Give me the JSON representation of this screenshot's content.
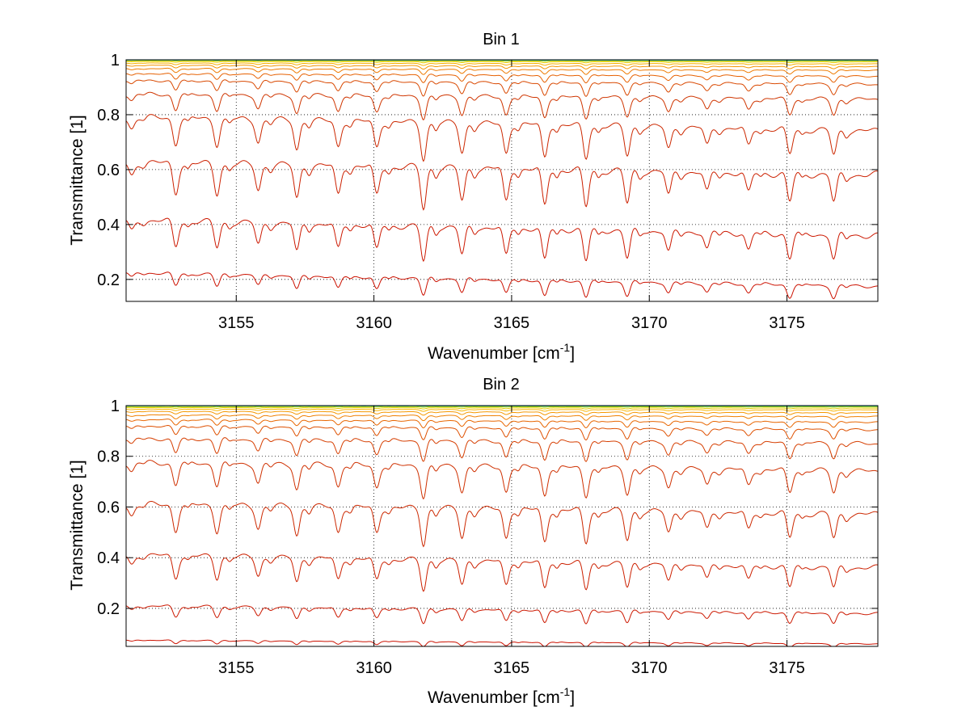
{
  "chart_data": [
    {
      "type": "line",
      "title": "Bin 1",
      "xlabel": "Wavenumber [cm",
      "xlabel_superscript": "-1",
      "xlabel_suffix": "]",
      "ylabel": "Transmittance [1]",
      "xlim": [
        3151.0,
        3178.3
      ],
      "ylim": [
        0.12,
        1.0
      ],
      "xticks": [
        3155,
        3160,
        3165,
        3170,
        3175
      ],
      "xtick_labels": [
        "3155",
        "3160",
        "3165",
        "3170",
        "3175"
      ],
      "yticks": [
        0.2,
        0.4,
        0.6,
        0.8,
        1.0
      ],
      "ytick_labels": [
        "0.2",
        "0.4",
        "0.6",
        "0.8",
        "1"
      ],
      "grid": true,
      "grid_style": "dotted",
      "spectrum_lines": [
        {
          "x": [
            3151.2,
            3152.8,
            3154.3,
            3155.8,
            3157.2,
            3158.7,
            3160.1,
            3161.8,
            3163.2,
            3164.8,
            3166.2,
            3167.7,
            3169.2,
            3170.7,
            3172.1,
            3173.6,
            3175.1,
            3176.7
          ],
          "depth": [
            0.3,
            0.7,
            0.7,
            0.6,
            0.8,
            0.7,
            0.7,
            1.0,
            0.8,
            0.8,
            0.9,
            0.9,
            0.8,
            0.6,
            0.5,
            0.5,
            0.7,
            0.7
          ]
        }
      ],
      "series": [
        {
          "baseline": 0.225,
          "end": 0.175,
          "strength": 0.065,
          "color": "#cc1100"
        },
        {
          "baseline": 0.415,
          "end": 0.36,
          "strength": 0.13,
          "color": "#cc1800"
        },
        {
          "baseline": 0.625,
          "end": 0.58,
          "strength": 0.15,
          "color": "#cc2000"
        },
        {
          "baseline": 0.79,
          "end": 0.74,
          "strength": 0.13,
          "color": "#cc2800"
        },
        {
          "baseline": 0.875,
          "end": 0.855,
          "strength": 0.08,
          "color": "#cf3500"
        },
        {
          "baseline": 0.925,
          "end": 0.91,
          "strength": 0.05,
          "color": "#d94800"
        },
        {
          "baseline": 0.95,
          "end": 0.94,
          "strength": 0.03,
          "color": "#e66000"
        },
        {
          "baseline": 0.968,
          "end": 0.962,
          "strength": 0.02,
          "color": "#ee7a00"
        },
        {
          "baseline": 0.98,
          "end": 0.975,
          "strength": 0.012,
          "color": "#f59400"
        },
        {
          "baseline": 0.988,
          "end": 0.985,
          "strength": 0.007,
          "color": "#f8b000"
        },
        {
          "baseline": 0.994,
          "end": 0.992,
          "strength": 0.004,
          "color": "#e8cc00"
        },
        {
          "baseline": 0.997,
          "end": 0.996,
          "strength": 0.002,
          "color": "#b8d400"
        },
        {
          "baseline": 0.999,
          "end": 0.998,
          "strength": 0.001,
          "color": "#30c0a0"
        },
        {
          "baseline": 1.0,
          "end": 1.0,
          "strength": 0.0005,
          "color": "#1a9ad0"
        }
      ]
    },
    {
      "type": "line",
      "title": "Bin 2",
      "xlabel": "Wavenumber [cm",
      "xlabel_superscript": "-1",
      "xlabel_suffix": "]",
      "ylabel": "Transmittance [1]",
      "xlim": [
        3151.0,
        3178.3
      ],
      "ylim": [
        0.05,
        1.0
      ],
      "xticks": [
        3155,
        3160,
        3165,
        3170,
        3175
      ],
      "xtick_labels": [
        "3155",
        "3160",
        "3165",
        "3170",
        "3175"
      ],
      "yticks": [
        0.2,
        0.4,
        0.6,
        0.8,
        1.0
      ],
      "ytick_labels": [
        "0.2",
        "0.4",
        "0.6",
        "0.8",
        "1"
      ],
      "grid": true,
      "grid_style": "dotted",
      "series": [
        {
          "baseline": 0.075,
          "end": 0.06,
          "strength": 0.02,
          "color": "#cc1100"
        },
        {
          "baseline": 0.21,
          "end": 0.18,
          "strength": 0.06,
          "color": "#cc1800"
        },
        {
          "baseline": 0.41,
          "end": 0.36,
          "strength": 0.12,
          "color": "#cc2000"
        },
        {
          "baseline": 0.61,
          "end": 0.57,
          "strength": 0.14,
          "color": "#cc2800"
        },
        {
          "baseline": 0.775,
          "end": 0.74,
          "strength": 0.12,
          "color": "#cf3000"
        },
        {
          "baseline": 0.87,
          "end": 0.85,
          "strength": 0.08,
          "color": "#d63e00"
        },
        {
          "baseline": 0.92,
          "end": 0.905,
          "strength": 0.05,
          "color": "#de5000"
        },
        {
          "baseline": 0.945,
          "end": 0.935,
          "strength": 0.03,
          "color": "#e86600"
        },
        {
          "baseline": 0.963,
          "end": 0.957,
          "strength": 0.02,
          "color": "#ef8000"
        },
        {
          "baseline": 0.977,
          "end": 0.972,
          "strength": 0.012,
          "color": "#f59800"
        },
        {
          "baseline": 0.986,
          "end": 0.983,
          "strength": 0.007,
          "color": "#f8b400"
        },
        {
          "baseline": 0.992,
          "end": 0.99,
          "strength": 0.004,
          "color": "#e0cc00"
        },
        {
          "baseline": 0.996,
          "end": 0.995,
          "strength": 0.002,
          "color": "#a8d400"
        },
        {
          "baseline": 0.999,
          "end": 0.998,
          "strength": 0.001,
          "color": "#30c0a0"
        },
        {
          "baseline": 1.0,
          "end": 1.0,
          "strength": 0.0005,
          "color": "#1a9ad0"
        }
      ]
    }
  ]
}
